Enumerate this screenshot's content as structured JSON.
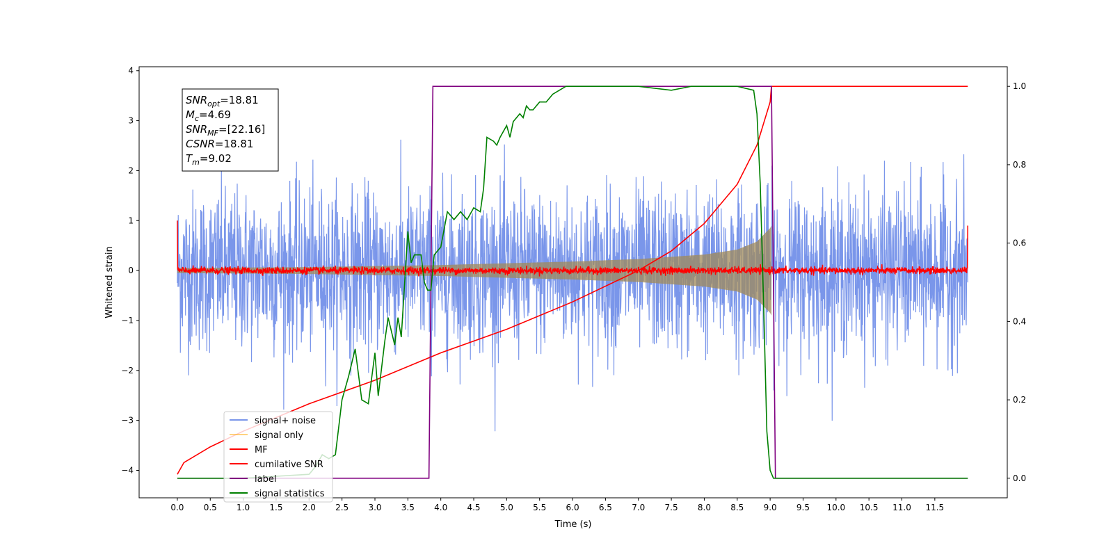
{
  "chart_data": {
    "type": "line",
    "title": "",
    "xlabel": "Time (s)",
    "ylabel": "Whitened strain",
    "xlim": [
      -0.58,
      12.6
    ],
    "ylim": [
      -4.55,
      4.08
    ],
    "y2lim": [
      -0.05,
      1.05
    ],
    "xticks": [
      "0.0",
      "0.5",
      "1.0",
      "1.5",
      "2.0",
      "2.5",
      "3.0",
      "3.5",
      "4.0",
      "4.5",
      "5.0",
      "5.5",
      "6.0",
      "6.5",
      "7.0",
      "7.5",
      "8.0",
      "8.5",
      "9.0",
      "9.5",
      "10.0",
      "10.5",
      "11.0",
      "11.5"
    ],
    "yticks": [
      "4",
      "3",
      "2",
      "1",
      "0",
      "−1",
      "−2",
      "−3",
      "−4"
    ],
    "y2ticks": [
      "1.0",
      "0.8",
      "0.6",
      "0.4",
      "0.2",
      "0.0"
    ],
    "grid": false,
    "legend_position": "lower-left",
    "annotation": {
      "lines": [
        {
          "sym": "SNR",
          "sub": "opt",
          "value": "=18.81"
        },
        {
          "sym": "M",
          "sub": "c",
          "value": "=4.69"
        },
        {
          "sym": "SNR",
          "sub": "MF",
          "value": "=[22.16]"
        },
        {
          "sym": "CSNR",
          "sub": "",
          "value": "=18.81"
        },
        {
          "sym": "T",
          "sub": "m",
          "value": "=9.02"
        }
      ]
    },
    "series": [
      {
        "name": "signal+ noise",
        "color": "#4169e1",
        "opacity": 0.7,
        "axis": "left",
        "description_values": {
          "x_start": 0.0,
          "x_end": 12.0,
          "noise_std": 0.8,
          "peak_abs": 3.8
        }
      },
      {
        "name": "signal only",
        "color": "#ffa500",
        "opacity": 0.5,
        "axis": "left",
        "envelope": {
          "x": [
            0.0,
            2.0,
            4.0,
            6.0,
            7.0,
            8.0,
            8.5,
            8.8,
            9.0,
            9.02
          ],
          "amp": [
            0.05,
            0.07,
            0.11,
            0.18,
            0.23,
            0.32,
            0.42,
            0.58,
            0.85,
            0.9
          ]
        }
      },
      {
        "name": "MF",
        "color": "#ff0000",
        "opacity": 1.0,
        "axis": "left",
        "description_values": {
          "x_start": 0.0,
          "x_end": 12.0,
          "level": 0.0,
          "noise_std": 0.035,
          "edge_value": 1.0
        }
      },
      {
        "name": "cumilative SNR",
        "color": "#ff0000",
        "opacity": 1.0,
        "axis": "right",
        "x": [
          0.0,
          0.1,
          0.5,
          1.0,
          2.0,
          3.0,
          4.0,
          5.0,
          6.0,
          7.0,
          7.5,
          8.0,
          8.5,
          8.8,
          9.0,
          9.02,
          12.0
        ],
        "y": [
          0.01,
          0.04,
          0.08,
          0.12,
          0.19,
          0.25,
          0.32,
          0.38,
          0.45,
          0.53,
          0.58,
          0.65,
          0.75,
          0.85,
          0.96,
          1.0,
          1.0
        ]
      },
      {
        "name": "label",
        "color": "#800080",
        "opacity": 1.0,
        "axis": "right",
        "x": [
          0.0,
          3.82,
          3.88,
          9.02,
          9.08,
          12.0
        ],
        "y": [
          0.0,
          0.0,
          1.0,
          1.0,
          0.0,
          0.0
        ]
      },
      {
        "name": "signal statistics",
        "color": "#008000",
        "opacity": 1.0,
        "axis": "right",
        "x": [
          0.0,
          1.0,
          2.0,
          2.1,
          2.2,
          2.3,
          2.4,
          2.5,
          2.6,
          2.7,
          2.8,
          2.9,
          3.0,
          3.05,
          3.1,
          3.15,
          3.2,
          3.3,
          3.35,
          3.4,
          3.5,
          3.55,
          3.6,
          3.65,
          3.7,
          3.75,
          3.8,
          3.85,
          3.9,
          4.0,
          4.1,
          4.2,
          4.3,
          4.4,
          4.5,
          4.6,
          4.65,
          4.7,
          4.8,
          4.85,
          4.9,
          5.0,
          5.05,
          5.1,
          5.2,
          5.25,
          5.3,
          5.35,
          5.4,
          5.5,
          5.6,
          5.7,
          5.8,
          5.9,
          6.0,
          6.2,
          6.5,
          7.0,
          7.5,
          7.8,
          8.0,
          8.5,
          8.75,
          8.8,
          8.85,
          8.9,
          8.95,
          9.0,
          9.05,
          9.1,
          11.0,
          12.0
        ],
        "y": [
          0.0,
          0.0,
          0.01,
          0.03,
          0.06,
          0.05,
          0.06,
          0.2,
          0.26,
          0.33,
          0.2,
          0.19,
          0.32,
          0.21,
          0.28,
          0.35,
          0.41,
          0.34,
          0.41,
          0.36,
          0.63,
          0.55,
          0.57,
          0.57,
          0.57,
          0.5,
          0.48,
          0.48,
          0.57,
          0.59,
          0.68,
          0.66,
          0.68,
          0.66,
          0.69,
          0.68,
          0.74,
          0.87,
          0.86,
          0.85,
          0.87,
          0.9,
          0.87,
          0.91,
          0.93,
          0.92,
          0.95,
          0.94,
          0.94,
          0.96,
          0.96,
          0.98,
          0.99,
          1.0,
          1.0,
          1.0,
          1.0,
          1.0,
          0.99,
          1.0,
          1.0,
          1.0,
          0.99,
          0.93,
          0.75,
          0.45,
          0.12,
          0.02,
          0.0,
          0.0,
          0.0,
          0.0
        ]
      }
    ]
  }
}
